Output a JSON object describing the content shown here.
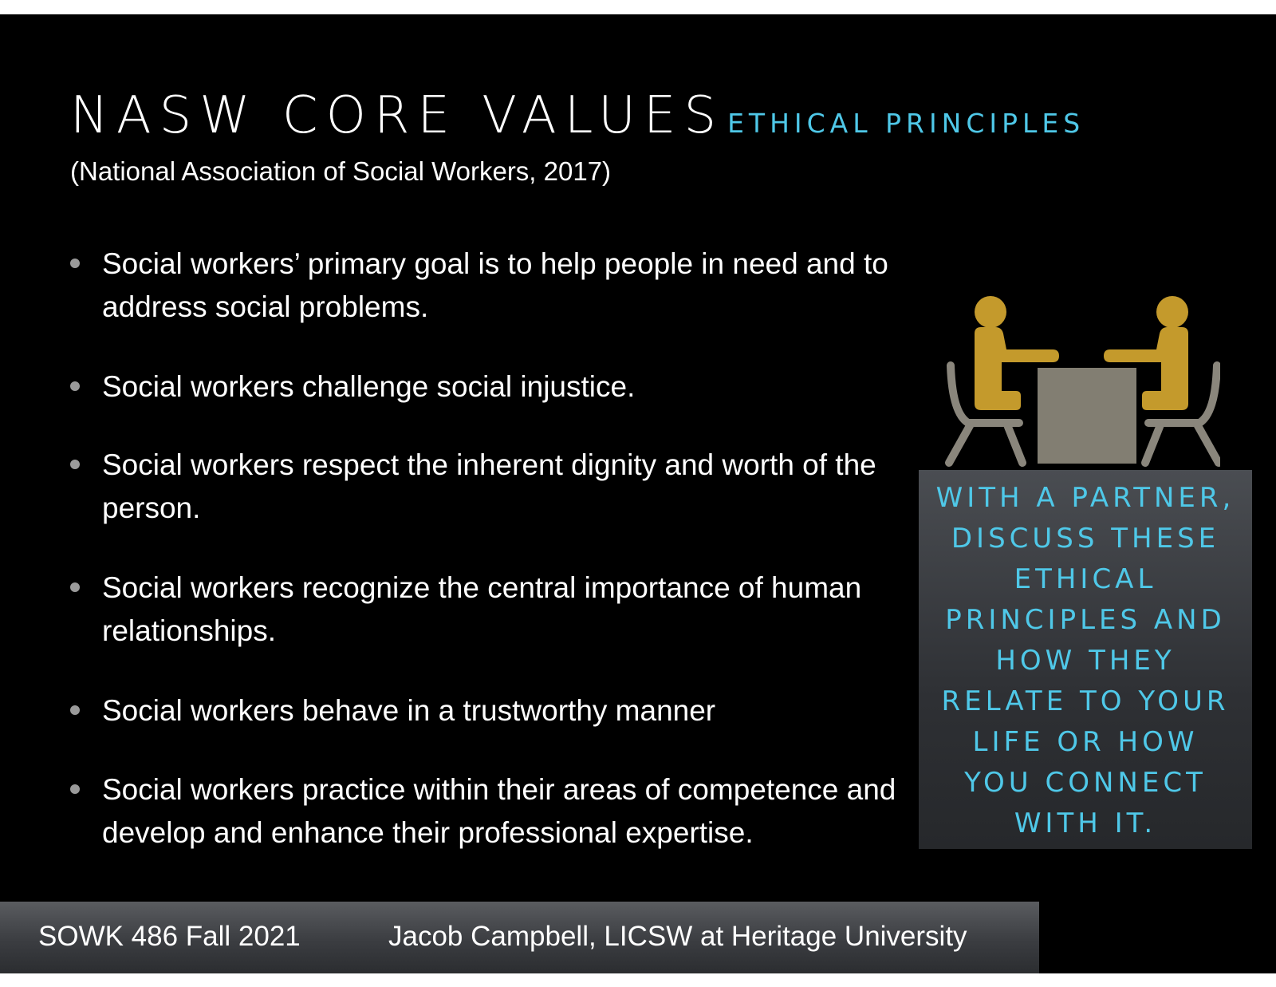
{
  "title": {
    "main": "NASW CORE VALUES",
    "sub": "ETHICAL PRINCIPLES"
  },
  "citation": "(National Association of Social Workers, 2017)",
  "bullets": [
    {
      "text": "Social workers’ primary goal is to help people in need and to address social problems."
    },
    {
      "text": "Social workers challenge social injustice."
    },
    {
      "text": "Social workers respect the inherent dignity and worth of the person."
    },
    {
      "text": "Social workers recognize the central importance of human relationships."
    },
    {
      "text": "Social workers behave in a trustworthy manner"
    },
    {
      "text": "Social workers practice within their areas of competence and develop and enhance their professional expertise."
    }
  ],
  "figure": {
    "icon": "two-people-at-table-icon",
    "person_color": "#c49a2c",
    "chair_color": "#8a867c",
    "table_color": "#827e72"
  },
  "callout": {
    "lines": [
      "WITH A PARTNER,",
      "DISCUSS THESE",
      "ETHICAL",
      "PRINCIPLES AND",
      "HOW THEY",
      "RELATE TO YOUR",
      "LIFE OR HOW",
      "YOU CONNECT",
      "WITH IT."
    ]
  },
  "footer": {
    "course": "SOWK 486 Fall 2021",
    "author": "Jacob Campbell, LICSW at Heritage University"
  },
  "colors": {
    "accent": "#4fc8e8",
    "background": "#000000",
    "text": "#ffffff"
  }
}
